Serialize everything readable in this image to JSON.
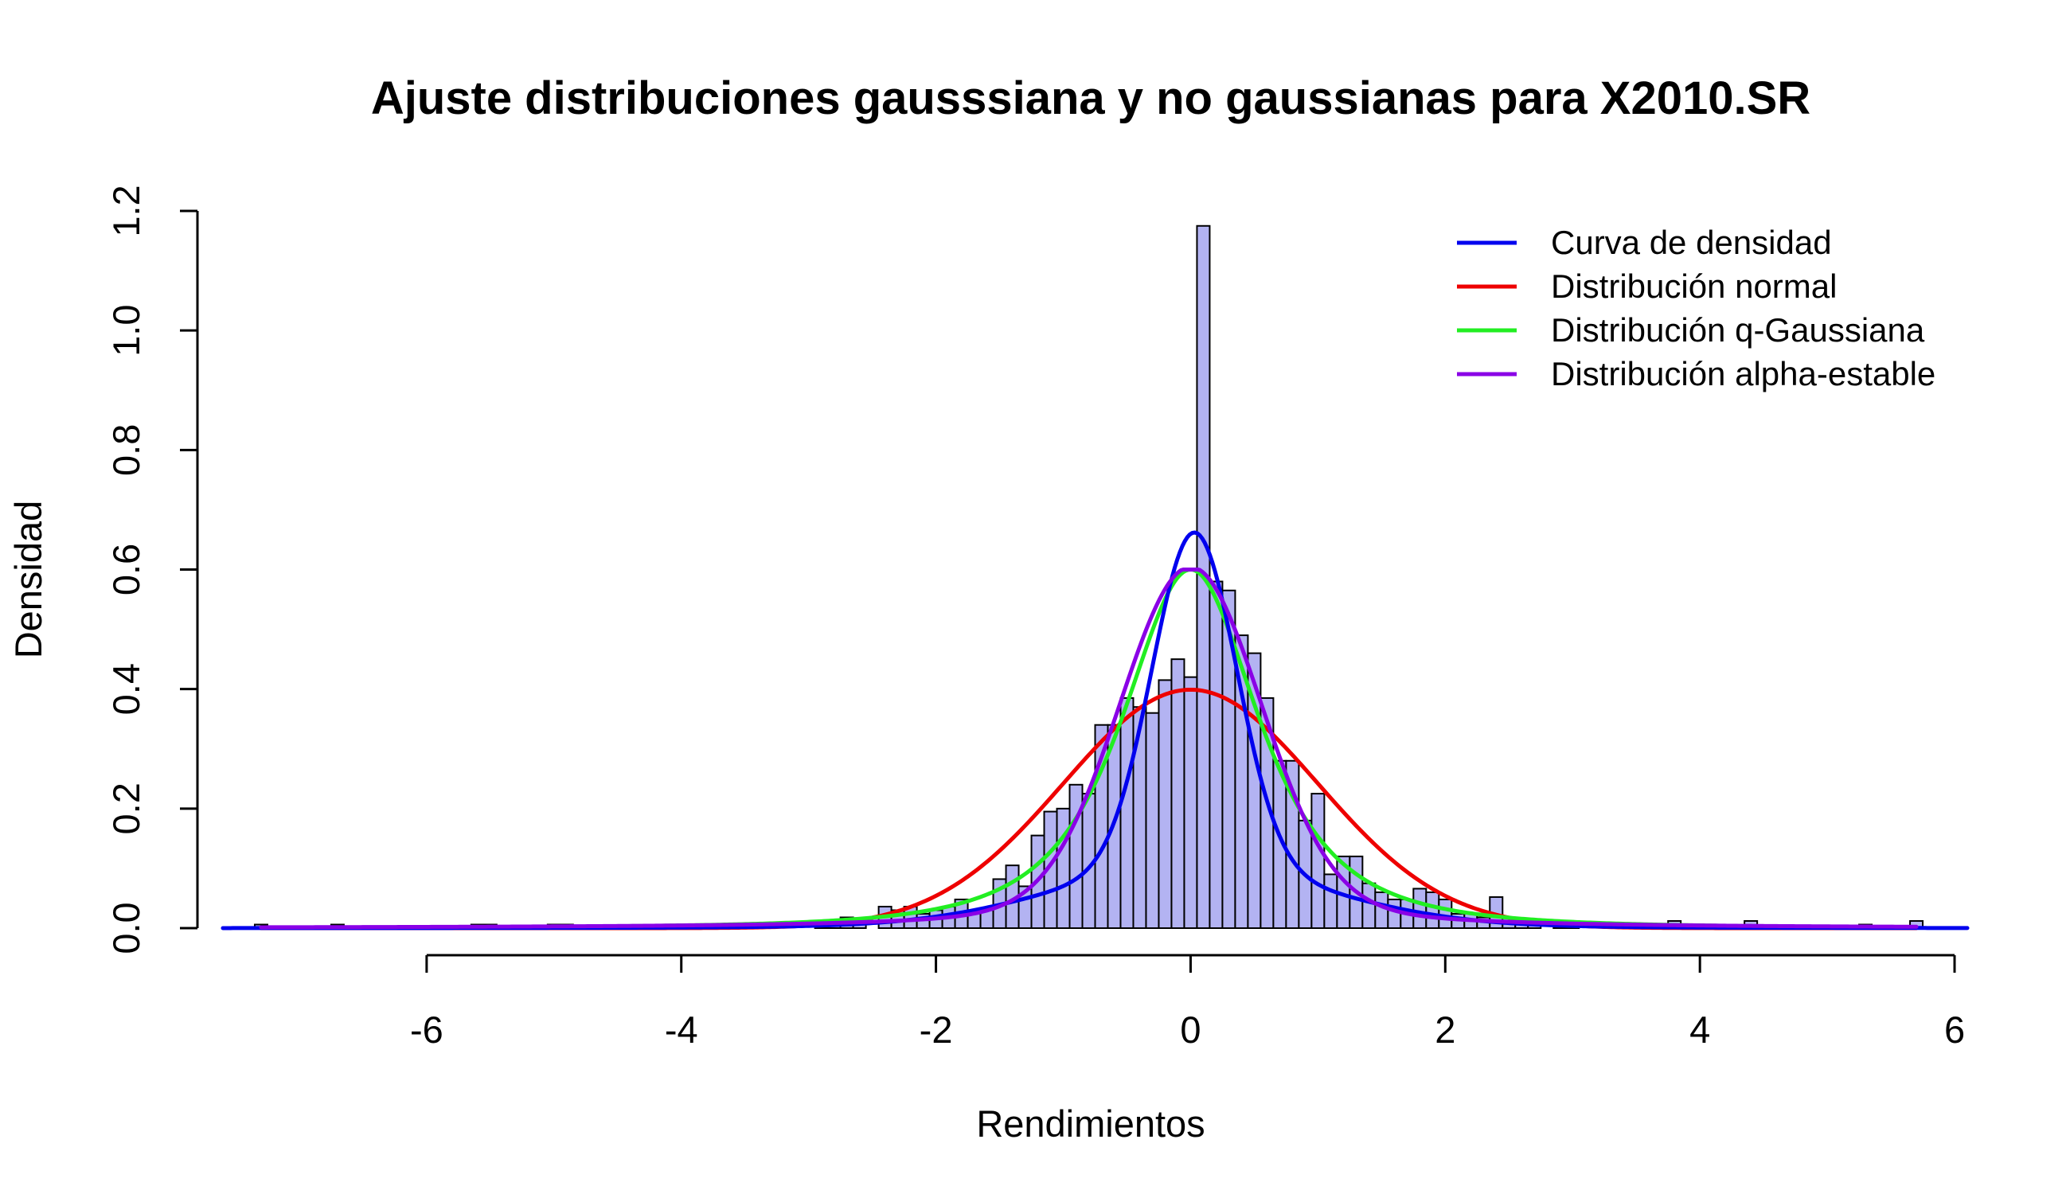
{
  "chart_data": {
    "type": "histogram",
    "title": "Ajuste distribuciones gausssiana y no gaussianas para X2010.SR",
    "xlabel": "Rendimientos",
    "ylabel": "Densidad",
    "xlim": [
      -7.8,
      6.2
    ],
    "ylim": [
      0,
      1.2
    ],
    "x_ticks": [
      -6,
      -4,
      -2,
      0,
      2,
      4,
      6
    ],
    "y_ticks": [
      0.0,
      0.2,
      0.4,
      0.6,
      0.8,
      1.0,
      1.2
    ],
    "x_tick_labels": [
      "-6",
      "-4",
      "-2",
      "0",
      "2",
      "4",
      "6"
    ],
    "y_tick_labels": [
      "0.0",
      "0.2",
      "0.4",
      "0.6",
      "0.8",
      "1.0",
      "1.2"
    ],
    "grid": false,
    "legend_position": "top-right",
    "bar_color": "#b3b3f2",
    "histogram": {
      "bin_width": 0.1,
      "bins": [
        [
          -7.3,
          0.006
        ],
        [
          -6.7,
          0.006
        ],
        [
          -5.6,
          0.006
        ],
        [
          -5.5,
          0.006
        ],
        [
          -5.0,
          0.006
        ],
        [
          -4.9,
          0.006
        ],
        [
          -3.8,
          0.003
        ],
        [
          -2.9,
          0.012
        ],
        [
          -2.8,
          0.012
        ],
        [
          -2.7,
          0.018
        ],
        [
          -2.6,
          0.012
        ],
        [
          -2.4,
          0.036
        ],
        [
          -2.3,
          0.03
        ],
        [
          -2.2,
          0.036
        ],
        [
          -2.1,
          0.024
        ],
        [
          -2.0,
          0.03
        ],
        [
          -1.9,
          0.036
        ],
        [
          -1.8,
          0.048
        ],
        [
          -1.7,
          0.03
        ],
        [
          -1.6,
          0.03
        ],
        [
          -1.5,
          0.082
        ],
        [
          -1.4,
          0.105
        ],
        [
          -1.3,
          0.07
        ],
        [
          -1.2,
          0.155
        ],
        [
          -1.1,
          0.195
        ],
        [
          -1.0,
          0.2
        ],
        [
          -0.9,
          0.24
        ],
        [
          -0.8,
          0.225
        ],
        [
          -0.7,
          0.34
        ],
        [
          -0.6,
          0.34
        ],
        [
          -0.5,
          0.385
        ],
        [
          -0.4,
          0.37
        ],
        [
          -0.3,
          0.36
        ],
        [
          -0.2,
          0.415
        ],
        [
          -0.1,
          0.45
        ],
        [
          0.0,
          0.42
        ],
        [
          0.1,
          1.175
        ],
        [
          0.2,
          0.58
        ],
        [
          0.3,
          0.565
        ],
        [
          0.4,
          0.49
        ],
        [
          0.5,
          0.46
        ],
        [
          0.6,
          0.385
        ],
        [
          0.7,
          0.28
        ],
        [
          0.8,
          0.28
        ],
        [
          0.9,
          0.18
        ],
        [
          1.0,
          0.225
        ],
        [
          1.1,
          0.09
        ],
        [
          1.2,
          0.12
        ],
        [
          1.3,
          0.12
        ],
        [
          1.4,
          0.075
        ],
        [
          1.5,
          0.06
        ],
        [
          1.6,
          0.048
        ],
        [
          1.7,
          0.048
        ],
        [
          1.8,
          0.066
        ],
        [
          1.9,
          0.06
        ],
        [
          2.0,
          0.048
        ],
        [
          2.1,
          0.024
        ],
        [
          2.2,
          0.024
        ],
        [
          2.3,
          0.018
        ],
        [
          2.4,
          0.052
        ],
        [
          2.5,
          0.018
        ],
        [
          2.6,
          0.012
        ],
        [
          2.7,
          0.006
        ],
        [
          2.9,
          0.012
        ],
        [
          3.0,
          0.012
        ],
        [
          3.8,
          0.012
        ],
        [
          4.4,
          0.012
        ],
        [
          5.3,
          0.006
        ],
        [
          5.7,
          0.012
        ]
      ]
    },
    "series": [
      {
        "name": "Curva de densidad",
        "color": "#0000ee",
        "range": [
          -7.6,
          6.1
        ]
      },
      {
        "name": "Distribución normal",
        "color": "#ee0000",
        "range": [
          -7.3,
          5.7
        ]
      },
      {
        "name": "Distribución q-Gaussiana",
        "color": "#22ee22",
        "range": [
          -7.3,
          5.7
        ]
      },
      {
        "name": "Distribución alpha-estable",
        "color": "#8a00e6",
        "range": [
          -7.3,
          5.7
        ]
      }
    ]
  }
}
